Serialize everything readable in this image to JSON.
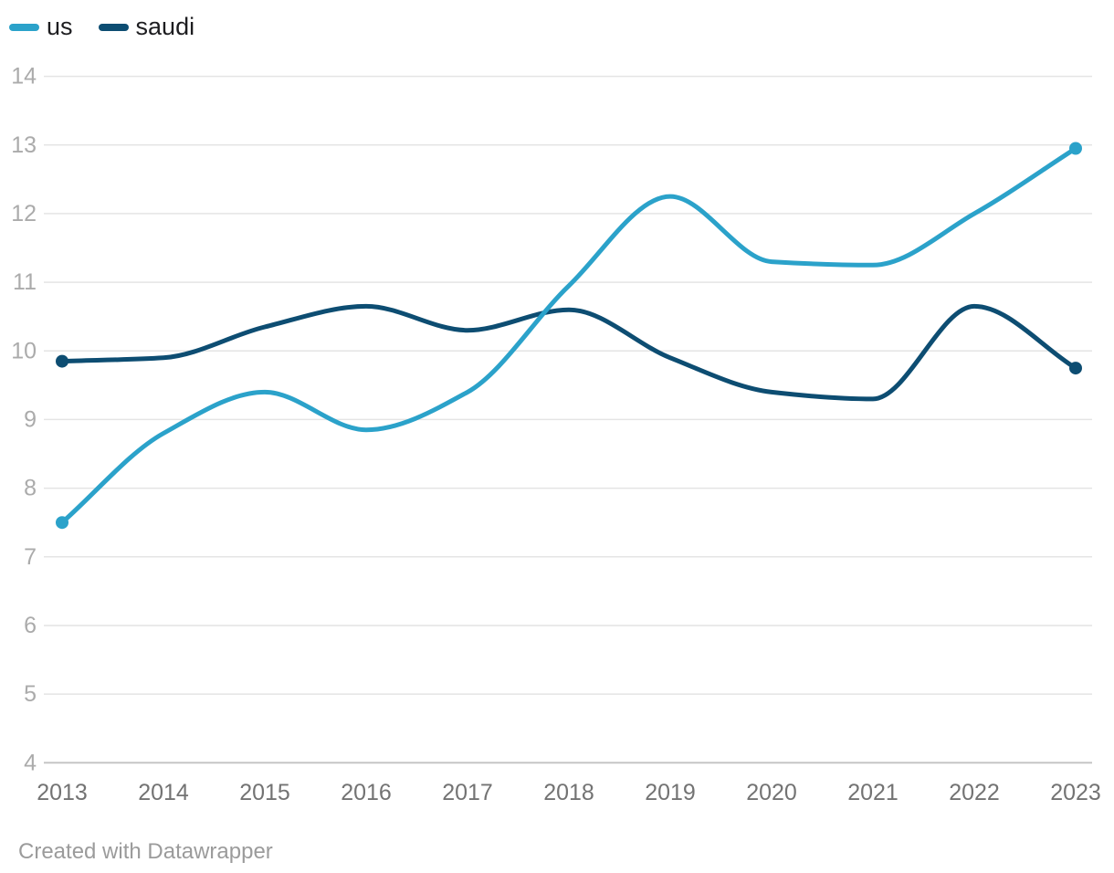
{
  "chart_data": {
    "type": "line",
    "title": "",
    "xlabel": "",
    "ylabel": "",
    "x": [
      2013,
      2014,
      2015,
      2016,
      2017,
      2018,
      2019,
      2020,
      2021,
      2022,
      2023
    ],
    "series": [
      {
        "name": "us",
        "color": "#2ba2ca",
        "values": [
          7.5,
          8.8,
          9.4,
          8.85,
          9.4,
          10.95,
          12.25,
          11.3,
          11.25,
          12.0,
          12.95
        ]
      },
      {
        "name": "saudi",
        "color": "#0d4d72",
        "values": [
          9.85,
          9.9,
          10.35,
          10.65,
          10.3,
          10.6,
          9.9,
          9.4,
          9.3,
          10.65,
          9.75
        ]
      }
    ],
    "ylim": [
      4,
      14
    ],
    "ytick_step": 1,
    "yticks": [
      4,
      5,
      6,
      7,
      8,
      9,
      10,
      11,
      12,
      13,
      14
    ],
    "grid": "horizontal",
    "legend_position": "top-left",
    "curve": "monotone",
    "endpoint_markers": true
  },
  "colors": {
    "grid": "#e4e4e4",
    "baseline": "#c6c6c6",
    "ytick_label": "#ababab",
    "xtick_label": "#737373",
    "legend_text": "#1d1d20",
    "footer_text": "#9b9b9b",
    "background": "#ffffff"
  },
  "footer": {
    "credit": "Created with Datawrapper"
  }
}
